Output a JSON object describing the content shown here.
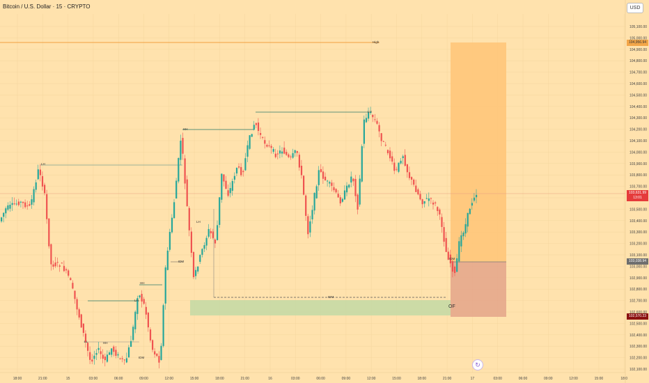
{
  "header": {
    "symbol_title": "Bitcoin / U.S. Dollar · 15 · CRYPTO",
    "currency_button": "USD"
  },
  "price_axis": {
    "labels": [
      "105,100.00",
      "105,000.00",
      "104,900.00",
      "104,800.00",
      "104,700.00",
      "104,600.00",
      "104,500.00",
      "104,400.00",
      "104,300.00",
      "104,200.00",
      "104,100.00",
      "104,000.00",
      "103,900.00",
      "103,800.00",
      "103,700.00",
      "103,600.00",
      "103,500.00",
      "103,400.00",
      "103,300.00",
      "103,200.00",
      "103,100.00",
      "103,000.00",
      "102,900.00",
      "102,800.00",
      "102,700.00",
      "102,600.00",
      "102,500.00",
      "102,400.00",
      "102,300.00",
      "102,200.00",
      "102,100.00"
    ]
  },
  "time_axis": {
    "labels": [
      "18:00",
      "21:00",
      "15",
      "03:00",
      "06:00",
      "09:00",
      "12:00",
      "15:00",
      "18:00",
      "21:00",
      "16",
      "03:00",
      "06:00",
      "09:00",
      "12:00",
      "15:00",
      "18:00",
      "21:00",
      "17",
      "03:00",
      "06:00",
      "09:00",
      "12:00",
      "15:00",
      "18:0"
    ]
  },
  "price_tags": {
    "current_price": "103,631.99",
    "countdown": "13:01",
    "high_level": "104,956.94",
    "entry_level": "103,038.94",
    "stop_level": "102,570.23"
  },
  "annotations": {
    "high": "High",
    "lh": "LH",
    "hh": "HH",
    "ll": "LL",
    "idm": "IDM",
    "of": "OF"
  },
  "colors": {
    "background": "#ffe2ad",
    "bull": "#26a69a",
    "bear": "#ef5350",
    "target_zone": "#ffc77a",
    "stop_zone": "#e4a58a",
    "order_block": "#c3d9a5",
    "current_price_line": "#e53b3b"
  }
}
